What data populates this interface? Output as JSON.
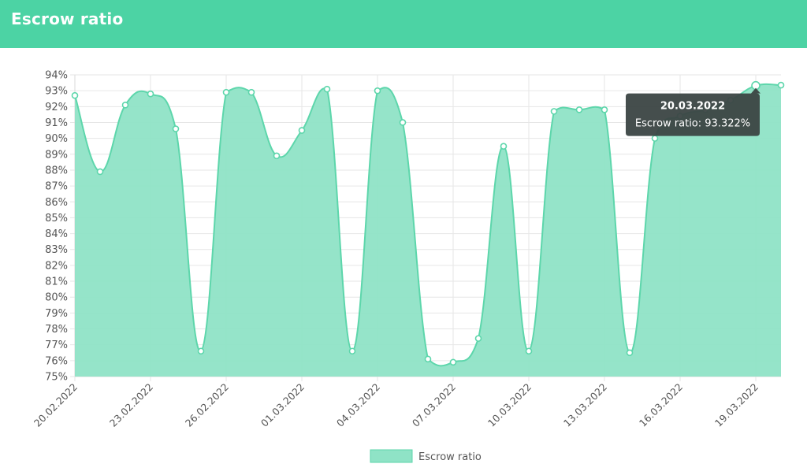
{
  "header": {
    "title": "Escrow ratio"
  },
  "colors": {
    "header": "#4cd3a4",
    "line": "#5dd6ab",
    "fill": "#8fe3c6",
    "grid": "#e6e6e6",
    "tooltip": "#3b4543"
  },
  "chart_data": {
    "type": "area",
    "series": [
      {
        "name": "Escrow ratio",
        "values": [
          92.7,
          87.9,
          92.1,
          92.8,
          90.6,
          76.6,
          92.9,
          92.9,
          88.9,
          90.5,
          93.1,
          76.6,
          93.0,
          91.0,
          76.1,
          75.9,
          77.4,
          89.5,
          76.6,
          91.7,
          91.8,
          91.8,
          76.5,
          90.0,
          91.4,
          91.8,
          92.4,
          93.322,
          93.35
        ]
      }
    ],
    "x_labels": [
      "20.02.2022",
      "23.02.2022",
      "26.02.2022",
      "01.03.2022",
      "04.03.2022",
      "07.03.2022",
      "10.03.2022",
      "13.03.2022",
      "16.03.2022",
      "19.03.2022"
    ],
    "y_ticks": [
      "75%",
      "76%",
      "77%",
      "78%",
      "79%",
      "80%",
      "81%",
      "82%",
      "83%",
      "84%",
      "85%",
      "86%",
      "87%",
      "88%",
      "89%",
      "90%",
      "91%",
      "92%",
      "93%",
      "94%"
    ],
    "ylim": [
      75,
      94
    ],
    "legend": {
      "label": "Escrow ratio",
      "position": "bottom"
    },
    "tooltip": {
      "title": "20.03.2022",
      "body": "Escrow ratio: 93.322%",
      "index": 27
    }
  }
}
